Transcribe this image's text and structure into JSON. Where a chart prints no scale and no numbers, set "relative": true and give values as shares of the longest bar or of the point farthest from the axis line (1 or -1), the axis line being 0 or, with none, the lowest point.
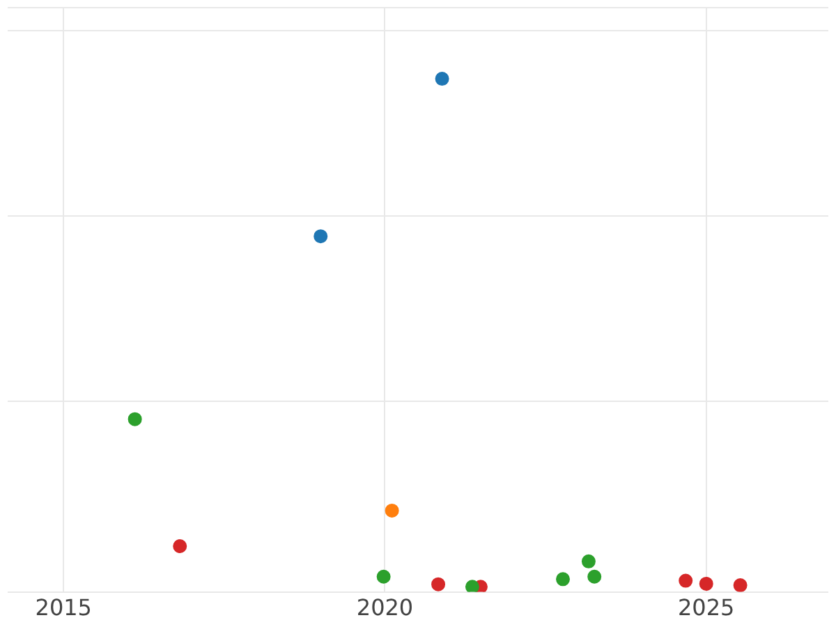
{
  "chart_data": {
    "type": "scatter",
    "relative": true,
    "xlim": [
      2014.13,
      2026.9
    ],
    "xticks": [
      2015,
      2020,
      2025
    ],
    "grid": true,
    "legend": false,
    "marker": "circle",
    "series": [
      {
        "color": "#1f77b4",
        "x": [
          2019.0,
          2020.89
        ],
        "values": [
          0.69,
          1
        ]
      },
      {
        "color": "#ff7f0e",
        "x": [
          2020.11
        ],
        "values": [
          0.15
        ]
      },
      {
        "color": "#2ca02c",
        "x": [
          2016.11,
          2019.98,
          2021.36,
          2022.77,
          2023.17,
          2023.26
        ],
        "values": [
          0.33,
          0.02,
          0,
          0.015,
          0.05,
          0.02
        ]
      },
      {
        "color": "#d62728",
        "x": [
          2016.81,
          2020.83,
          2021.49,
          2024.68,
          2025.0,
          2025.53
        ],
        "values": [
          0.08,
          0.005,
          0,
          0.012,
          0.006,
          0.003
        ]
      }
    ]
  }
}
